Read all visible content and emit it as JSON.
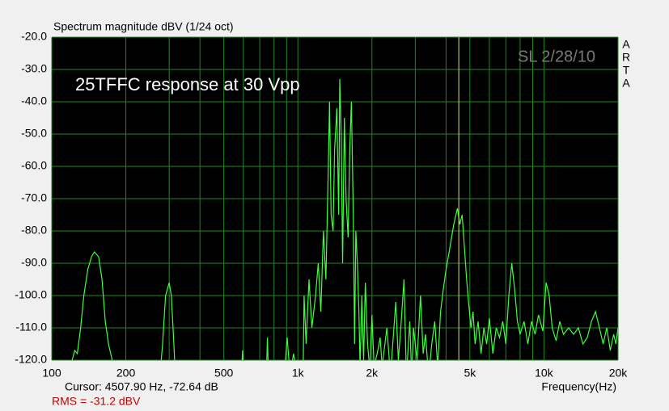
{
  "chart_data": {
    "type": "line",
    "title": "Spectrum magnitude dBV (1/24 oct)",
    "annotation": "25TFFC response at 30 Vpp",
    "signature": "SL 2/28/10",
    "brand": [
      "A",
      "R",
      "T",
      "A"
    ],
    "x_label": "Frequency(Hz)",
    "cursor": {
      "x": 4507.9,
      "label": "Cursor:  4507.90 Hz, -72.64 dB",
      "color": "#e8e060"
    },
    "rms_label": "RMS =  -31.2 dBV",
    "log_x": true,
    "grid": true,
    "xlim": [
      100,
      20000
    ],
    "ylim": [
      -120,
      -20
    ],
    "xticks": [
      100,
      200,
      500,
      {
        "value": 1000,
        "label": "1k"
      },
      {
        "value": 2000,
        "label": "2k"
      },
      {
        "value": 5000,
        "label": "5k"
      },
      {
        "value": 10000,
        "label": "10k"
      },
      {
        "value": 20000,
        "label": "20k"
      }
    ],
    "xminor_ticks": [
      300,
      400,
      600,
      700,
      800,
      900,
      3000,
      4000,
      6000,
      7000,
      8000,
      9000
    ],
    "yticks": [
      {
        "value": -20,
        "label": "-20.0"
      },
      {
        "value": -30,
        "label": "-30.0"
      },
      {
        "value": -40,
        "label": "-40.0"
      },
      {
        "value": -50,
        "label": "-50.0"
      },
      {
        "value": -60,
        "label": "-60.0"
      },
      {
        "value": -70,
        "label": "-70.0"
      },
      {
        "value": -80,
        "label": "-80.0"
      },
      {
        "value": -90,
        "label": "-90.0"
      },
      {
        "value": -100,
        "label": "-100.0"
      },
      {
        "value": -110,
        "label": "-110.0"
      },
      {
        "value": -120,
        "label": "-120.0"
      }
    ],
    "series": [
      {
        "color": "#3dff3d",
        "x": [
          120,
          124,
          127,
          131,
          135,
          140,
          145,
          149,
          155,
          160,
          165,
          170,
          176,
          180,
          275,
          282,
          290,
          300,
          306,
          312,
          318,
          590,
          596,
          602,
          745,
          752,
          760,
          880,
          905,
          930,
          960,
          1000,
          1050,
          1060,
          1080,
          1110,
          1140,
          1180,
          1210,
          1240,
          1270,
          1300,
          1330,
          1345,
          1365,
          1390,
          1410,
          1440,
          1465,
          1480,
          1500,
          1520,
          1545,
          1570,
          1600,
          1625,
          1650,
          1680,
          1700,
          1720,
          1745,
          1770,
          1790,
          1820,
          1850,
          1880,
          1920,
          1960,
          2000,
          2040,
          2100,
          2160,
          2200,
          2300,
          2380,
          2430,
          2500,
          2560,
          2620,
          2700,
          2760,
          2850,
          2900,
          2950,
          3050,
          3150,
          3230,
          3300,
          3400,
          3500,
          3600,
          3700,
          3800,
          3900,
          4000,
          4150,
          4300,
          4450,
          4550,
          4650,
          4750,
          4850,
          4950,
          5050,
          5150,
          5250,
          5400,
          5550,
          5700,
          5850,
          6000,
          6200,
          6400,
          6600,
          6800,
          7000,
          7200,
          7400,
          7600,
          7800,
          8000,
          8300,
          8600,
          8900,
          9200,
          9500,
          9900,
          10200,
          10500,
          10800,
          11200,
          11600,
          12000,
          12600,
          13200,
          13800,
          14400,
          15000,
          15600,
          16200,
          16800,
          17400,
          18000,
          18600,
          19200,
          19600,
          20000
        ],
        "values": [
          -121,
          -117,
          -118,
          -110,
          -100,
          -92,
          -88,
          -86.5,
          -88,
          -95,
          -108,
          -115,
          -120,
          -122,
          -125,
          -115,
          -100,
          -96,
          -100,
          -112,
          -125,
          -125,
          -117,
          -125,
          -125,
          -113,
          -125,
          -125,
          -113,
          -125,
          -118,
          -125,
          -125,
          -100,
          -115,
          -95,
          -110,
          -100,
          -90,
          -105,
          -80,
          -95,
          -60,
          -40,
          -75,
          -80,
          -55,
          -42,
          -75,
          -33,
          -50,
          -90,
          -45,
          -70,
          -82,
          -55,
          -40,
          -75,
          -115,
          -80,
          -90,
          -105,
          -122,
          -100,
          -120,
          -96,
          -115,
          -123,
          -106,
          -122,
          -118,
          -113,
          -122,
          -110,
          -125,
          -115,
          -102,
          -120,
          -110,
          -95,
          -125,
          -108,
          -125,
          -110,
          -120,
          -100,
          -118,
          -112,
          -125,
          -115,
          -108,
          -122,
          -105,
          -98,
          -92,
          -85,
          -78,
          -73,
          -78,
          -75,
          -85,
          -95,
          -103,
          -110,
          -105,
          -115,
          -108,
          -118,
          -110,
          -115,
          -107,
          -118,
          -110,
          -113,
          -108,
          -115,
          -100,
          -90,
          -98,
          -108,
          -112,
          -108,
          -115,
          -108,
          -112,
          -106,
          -111,
          -96,
          -100,
          -110,
          -114,
          -108,
          -112,
          -110,
          -112,
          -110,
          -115,
          -113,
          -108,
          -105,
          -110,
          -115,
          -110,
          -117,
          -112,
          -115,
          -110
        ]
      }
    ]
  }
}
